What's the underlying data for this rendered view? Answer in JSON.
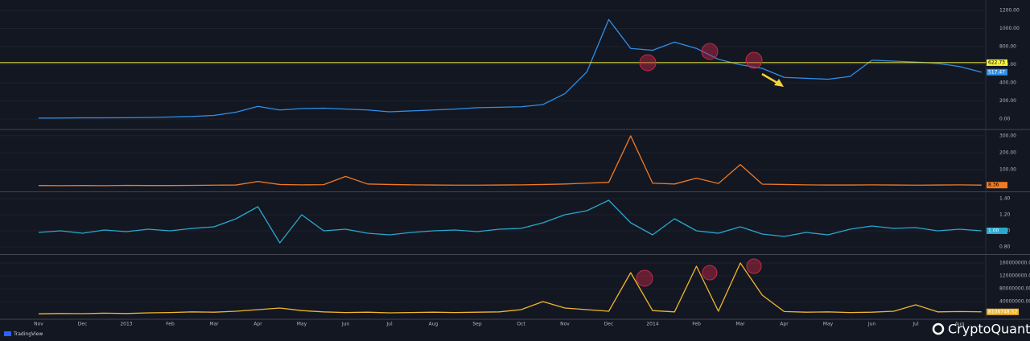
{
  "chart_data": [
    {
      "type": "line",
      "name": "price",
      "series": [
        {
          "color": "#2f8fe8",
          "values": [
            10,
            11,
            13,
            13,
            14,
            16,
            22,
            28,
            40,
            75,
            140,
            100,
            115,
            120,
            110,
            100,
            80,
            90,
            100,
            110,
            125,
            130,
            135,
            160,
            280,
            520,
            1100,
            780,
            760,
            850,
            780,
            660,
            600,
            560,
            460,
            450,
            440,
            470,
            650,
            640,
            630,
            615,
            580,
            517.47
          ]
        }
      ],
      "ylim": [
        -107,
        1271
      ],
      "yticks": [
        {
          "value": 0,
          "label": "0.00"
        },
        {
          "value": 200,
          "label": "200.00"
        },
        {
          "value": 400,
          "label": "400.00"
        },
        {
          "value": 600,
          "label": "600.00"
        },
        {
          "value": 800,
          "label": "800.00"
        },
        {
          "value": 1000,
          "label": "1000.00"
        },
        {
          "value": 1200,
          "label": "1200.00"
        }
      ],
      "reference_line": 622.73,
      "reference_color": "#f5f242",
      "last_value": 517.47
    },
    {
      "type": "line",
      "name": "ratio-spikes",
      "series": [
        {
          "color": "#f07a24",
          "values": [
            6,
            5,
            6,
            5,
            7,
            6,
            6,
            7,
            8,
            9,
            30,
            12,
            10,
            11,
            60,
            15,
            12,
            10,
            9,
            8,
            8,
            9,
            10,
            12,
            15,
            20,
            25,
            300,
            20,
            15,
            50,
            18,
            130,
            14,
            12,
            10,
            9,
            9,
            10,
            9,
            8,
            9,
            10,
            8.36
          ]
        }
      ],
      "ylim": [
        -24,
        333
      ],
      "yticks": [
        {
          "value": 100,
          "label": "100.00"
        },
        {
          "value": 200,
          "label": "200.00"
        },
        {
          "value": 300,
          "label": "300.00"
        }
      ],
      "last_value": 8.36
    },
    {
      "type": "line",
      "name": "oscillator",
      "series": [
        {
          "color": "#29a8cc",
          "values": [
            0.98,
            1.0,
            0.97,
            1.01,
            0.99,
            1.02,
            1.0,
            1.03,
            1.05,
            1.15,
            1.3,
            0.85,
            1.2,
            1.0,
            1.02,
            0.97,
            0.95,
            0.98,
            1.0,
            1.01,
            0.99,
            1.02,
            1.03,
            1.1,
            1.2,
            1.25,
            1.38,
            1.1,
            0.95,
            1.15,
            1.0,
            0.97,
            1.05,
            0.96,
            0.93,
            0.98,
            0.95,
            1.02,
            1.06,
            1.03,
            1.04,
            1.0,
            1.02,
            1
          ]
        }
      ],
      "ylim": [
        0.72,
        1.47
      ],
      "yticks": [
        {
          "value": 0.8,
          "label": "0.80"
        },
        {
          "value": 1,
          "label": "1.00"
        },
        {
          "value": 1.2,
          "label": "1.20"
        },
        {
          "value": 1.4,
          "label": "1.40"
        }
      ],
      "last_value": {
        "value": 1,
        "label": "1.00"
      }
    },
    {
      "type": "line",
      "name": "volume",
      "series": [
        {
          "color": "#f2b62b",
          "values": [
            2000000,
            3000000,
            2500000,
            4000000,
            3000000,
            5000000,
            6000000,
            8000000,
            7000000,
            10000000,
            15000000,
            20000000,
            12000000,
            8000000,
            6000000,
            7000000,
            5000000,
            6000000,
            7000000,
            6000000,
            7000000,
            8000000,
            15000000,
            40000000,
            20000000,
            15000000,
            10000000,
            130000000,
            12000000,
            8000000,
            150000000,
            10000000,
            160000000,
            60000000,
            9000000,
            7000000,
            8000000,
            6000000,
            7000000,
            10000000,
            30000000,
            8000000,
            9000000,
            8106748.52
          ]
        }
      ],
      "ylim": [
        -10000000,
        182500000
      ],
      "yticks": [
        {
          "value": 40000000,
          "label": "40000000.00"
        },
        {
          "value": 80000000,
          "label": "80000000.00"
        },
        {
          "value": 120000000,
          "label": "120000000.00"
        },
        {
          "value": 160000000,
          "label": "160000000.00"
        }
      ],
      "last_value": 8106748.52,
      "categories": [
        "Nov",
        null,
        "Dec",
        null,
        "2013",
        null,
        "Feb",
        null,
        "Mar",
        null,
        "Apr",
        null,
        "May",
        null,
        "Jun",
        null,
        "Jul",
        null,
        "Aug",
        null,
        "Sep",
        null,
        "Oct",
        null,
        "Nov",
        null,
        "Dec",
        null,
        "2014",
        null,
        "Feb",
        null,
        "Mar",
        null,
        "Apr",
        null,
        "May",
        null,
        "Jun",
        null,
        "Jul",
        null,
        "Aug",
        null
      ]
    }
  ],
  "attribution": "TradingView",
  "watermark": "CryptoQuant"
}
